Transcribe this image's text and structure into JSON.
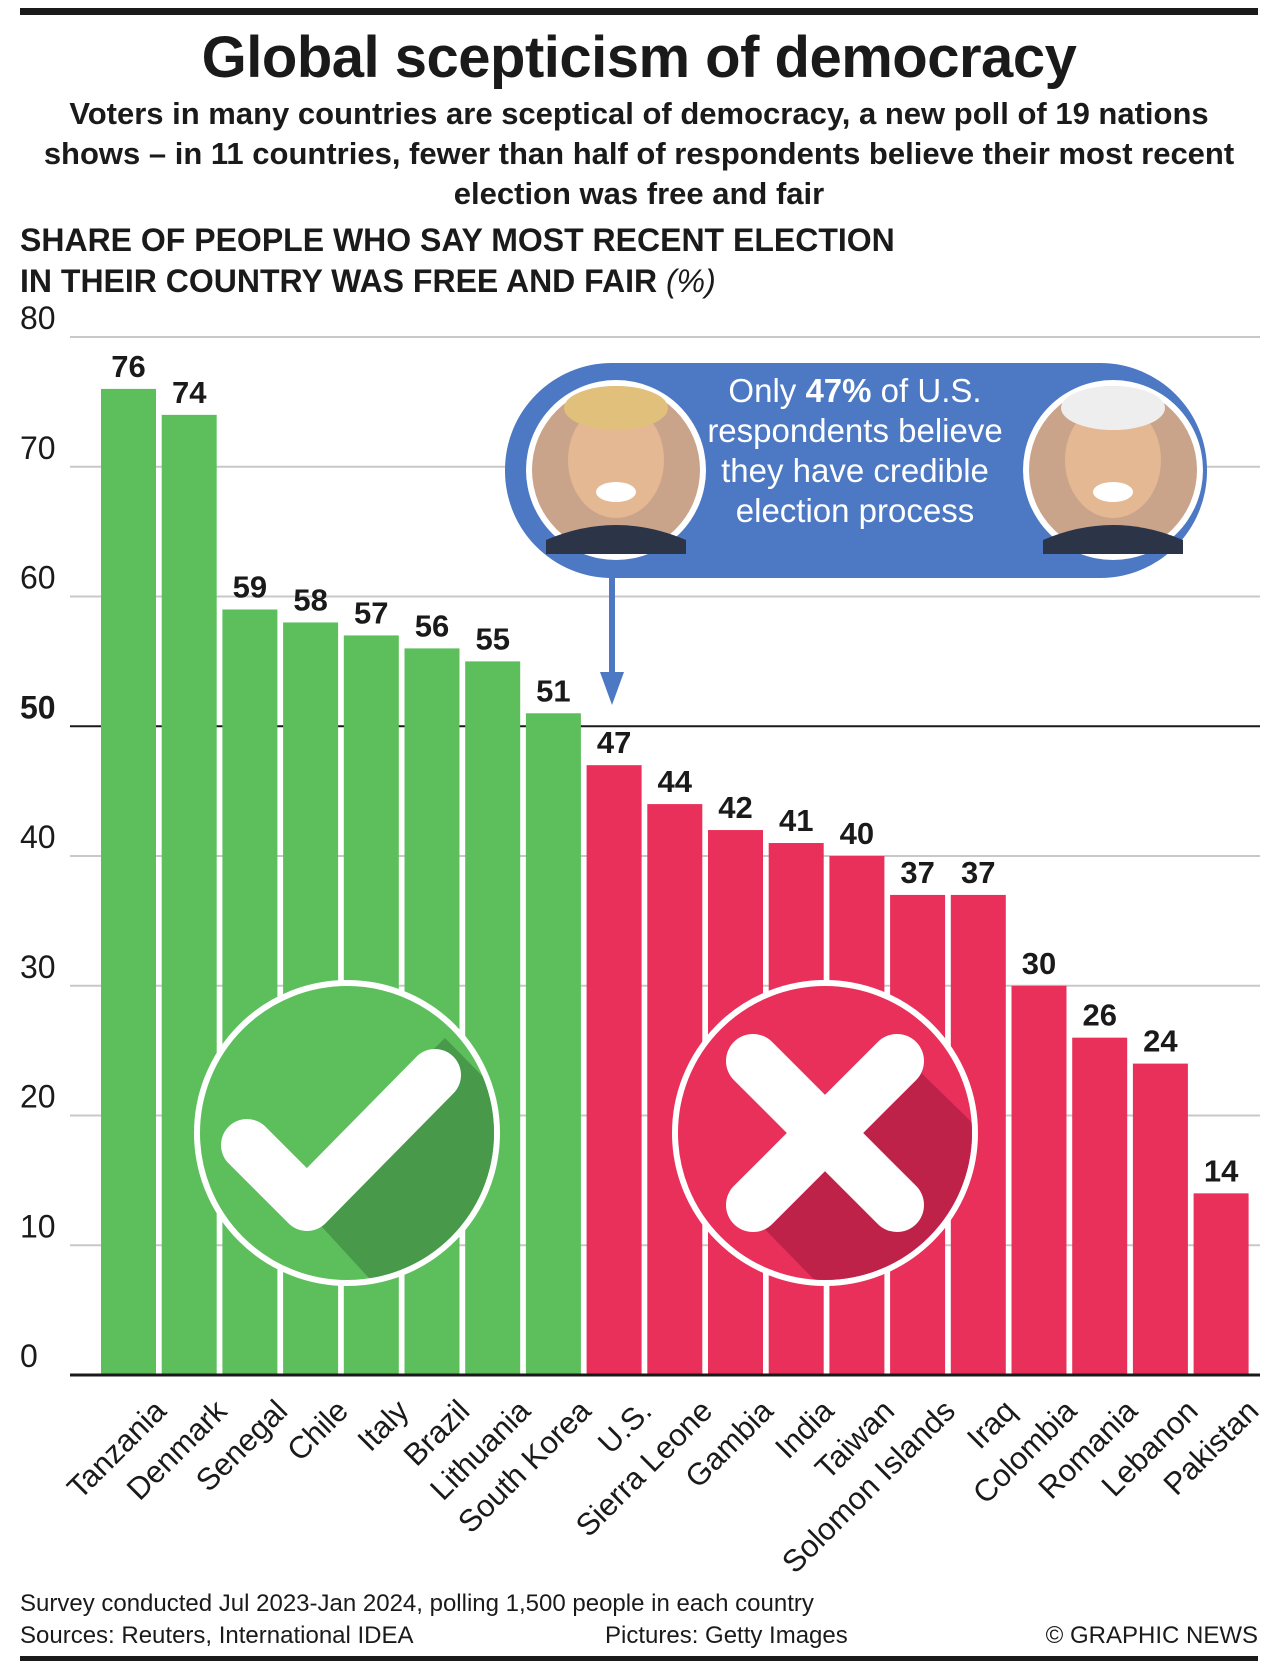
{
  "header": {
    "title": "Global scepticism of democracy",
    "subtitle": "Voters in many countries are sceptical of democracy, a new poll of 19 nations shows – in 11 countries, fewer than half of respondents believe their most recent election was free and fair",
    "ylabel_line1": "SHARE OF PEOPLE WHO SAY MOST RECENT ELECTION",
    "ylabel_line2": "IN THEIR COUNTRY WAS FREE AND FAIR",
    "ylabel_unit": "(%)"
  },
  "callout": {
    "text_before": "Only ",
    "highlight": "47%",
    "text_after": " of U.S. respondents believe they have credible election process"
  },
  "footer": {
    "note": "Survey conducted Jul 2023-Jan 2024, polling 1,500 people in each country",
    "sources": "Sources: Reuters, International IDEA",
    "pictures": "Pictures: Getty Images",
    "copyright": "© GRAPHIC NEWS"
  },
  "colors": {
    "above_50": "#5cbf5c",
    "below_50": "#e8305a",
    "callout_blue": "#4c78c4",
    "grid": "#c8c8c8"
  },
  "icons": {
    "green_circle": "checkmark-icon",
    "red_circle": "cross-icon"
  },
  "chart_data": {
    "type": "bar",
    "categories": [
      "Tanzania",
      "Denmark",
      "Senegal",
      "Chile",
      "Italy",
      "Brazil",
      "Lithuania",
      "South Korea",
      "U.S.",
      "Sierra Leone",
      "Gambia",
      "India",
      "Taiwan",
      "Solomon Islands",
      "Iraq",
      "Colombia",
      "Romania",
      "Lebanon",
      "Pakistan"
    ],
    "values": [
      76,
      74,
      59,
      58,
      57,
      56,
      55,
      51,
      47,
      44,
      42,
      41,
      40,
      37,
      37,
      30,
      26,
      24,
      14
    ],
    "ylim": [
      0,
      80
    ],
    "yticks": [
      0,
      10,
      20,
      30,
      40,
      50,
      60,
      70,
      80
    ],
    "threshold": 50,
    "grid": true
  }
}
